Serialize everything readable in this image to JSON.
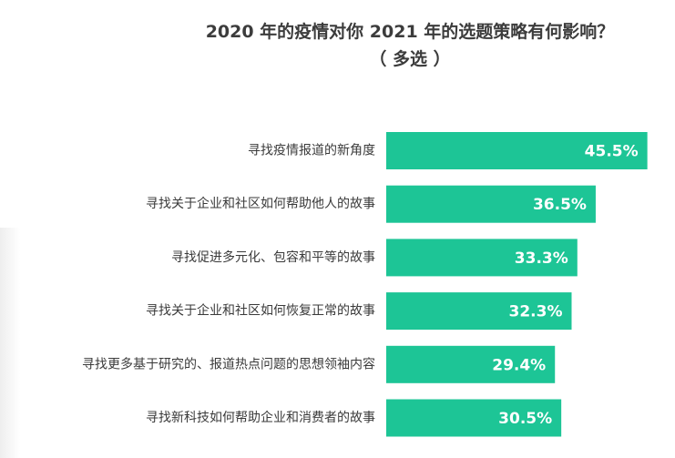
{
  "chart_data": {
    "type": "bar",
    "orientation": "horizontal",
    "title": "2020 年的疫情对你 2021 年的选题策略有何影响？",
    "subtitle": "（ 多选 ）",
    "categories": [
      "寻找疫情报道的新角度",
      "寻找关于企业和社区如何帮助他人的故事",
      "寻找促进多元化、包容和平等的故事",
      "寻找关于企业和社区如何恢复正常的故事",
      "寻找更多基于研究的、报道热点问题的思想领袖内容",
      "寻找新科技如何帮助企业和消费者的故事"
    ],
    "values": [
      45.5,
      36.5,
      33.3,
      32.3,
      29.4,
      30.5
    ],
    "value_labels": [
      "45.5%",
      "36.5%",
      "33.3%",
      "32.3%",
      "29.4%",
      "30.5%"
    ],
    "unit": "%",
    "bar_color": "#1dc596",
    "grid": false,
    "legend": "none"
  }
}
